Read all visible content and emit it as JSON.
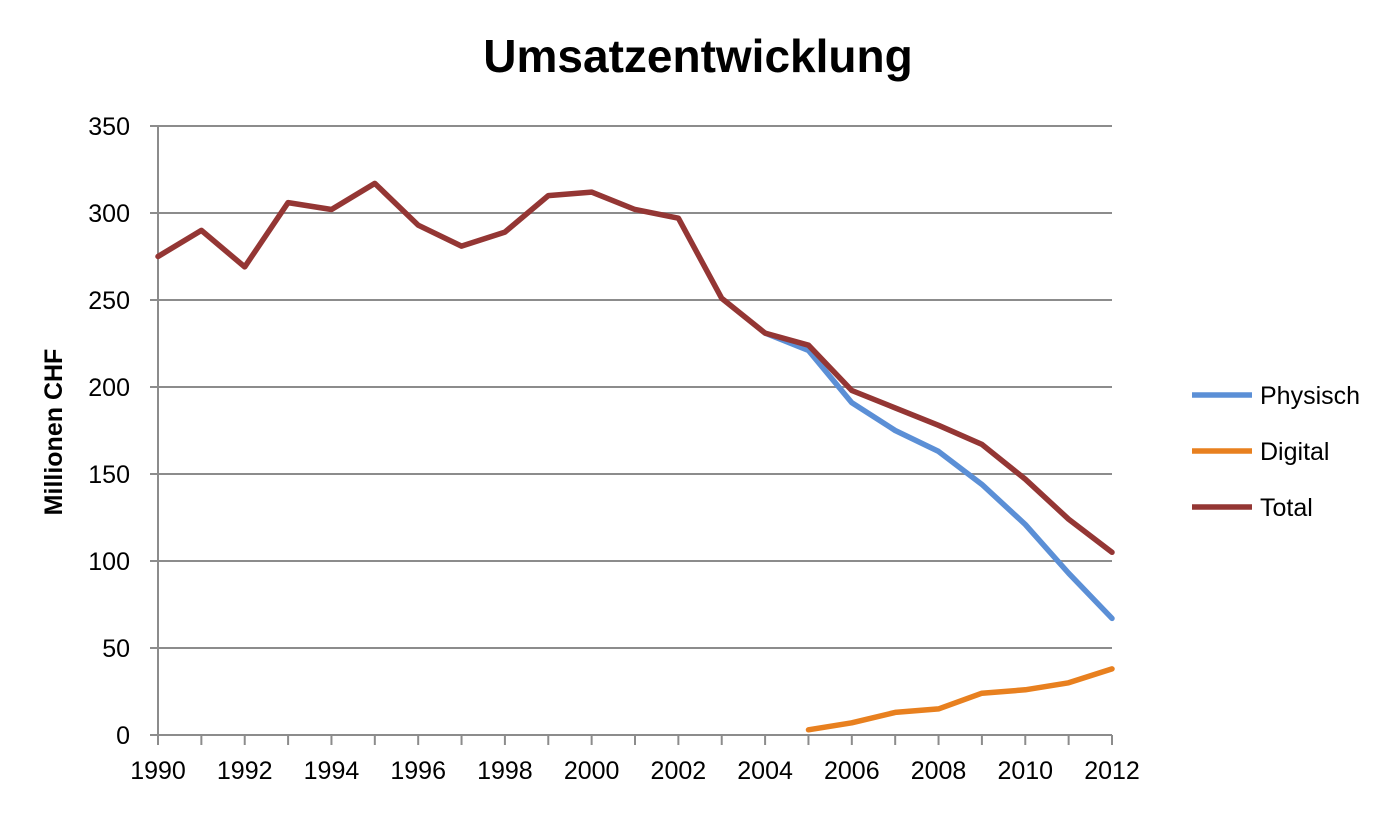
{
  "chart_data": {
    "type": "line",
    "title": "Umsatzentwicklung",
    "xlabel": "",
    "ylabel": "Millionen CHF",
    "xlim": [
      1990,
      2012
    ],
    "ylim": [
      0,
      350
    ],
    "x_ticks": [
      1990,
      1992,
      1994,
      1996,
      1998,
      2000,
      2002,
      2004,
      2006,
      2008,
      2010,
      2012
    ],
    "y_ticks": [
      0,
      50,
      100,
      150,
      200,
      250,
      300,
      350
    ],
    "grid": "horizontal",
    "legend_position": "right",
    "series": [
      {
        "name": "Physisch",
        "color": "#5b8fd6",
        "x": [
          2004,
          2005,
          2006,
          2007,
          2008,
          2009,
          2010,
          2011,
          2012
        ],
        "values": [
          231,
          221,
          191,
          175,
          163,
          144,
          121,
          93,
          67
        ]
      },
      {
        "name": "Digital",
        "color": "#e8801f",
        "x": [
          2005,
          2006,
          2007,
          2008,
          2009,
          2010,
          2011,
          2012
        ],
        "values": [
          3,
          7,
          13,
          15,
          24,
          26,
          30,
          38
        ]
      },
      {
        "name": "Total",
        "color": "#943634",
        "x": [
          1990,
          1991,
          1992,
          1993,
          1994,
          1995,
          1996,
          1997,
          1998,
          1999,
          2000,
          2001,
          2002,
          2003,
          2004,
          2005,
          2006,
          2007,
          2008,
          2009,
          2010,
          2011,
          2012
        ],
        "values": [
          275,
          290,
          269,
          306,
          302,
          317,
          293,
          281,
          289,
          310,
          312,
          302,
          297,
          251,
          231,
          224,
          198,
          188,
          178,
          167,
          147,
          124,
          105
        ]
      }
    ]
  }
}
